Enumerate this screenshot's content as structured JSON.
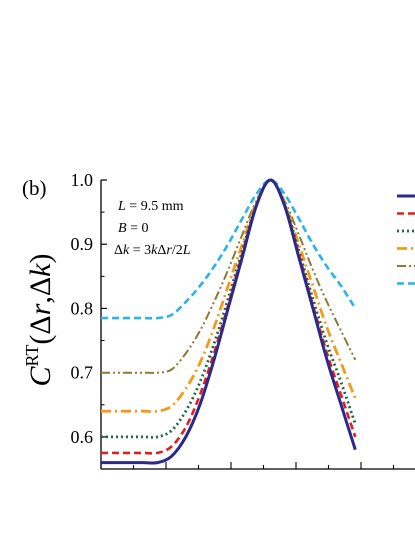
{
  "panel_label": "(b)",
  "annotations": {
    "line1_var": "L",
    "line1_rest": " = 9.5 mm",
    "line2_var": "B",
    "line2_rest": " = 0",
    "line3_a": "Δ",
    "line3_b": "k",
    "line3_c": " = 3",
    "line3_d": "k",
    "line3_e": "Δ",
    "line3_f": "r",
    "line3_g": "/2",
    "line3_h": "L"
  },
  "ylabel": {
    "C": "C",
    "sup": "RT",
    "open": "(Δ",
    "r": "r",
    "comma": ",Δ",
    "k": "k",
    "close": ")"
  },
  "chart_data": {
    "type": "line",
    "title": "",
    "xlabel": "",
    "ylabel": "C^RT(Δr,Δk)",
    "ylim": [
      0.55,
      1.0
    ],
    "yticks": [
      0.6,
      0.7,
      0.8,
      0.9,
      1.0
    ],
    "ytick_labels": [
      "0.6",
      "0.7",
      "0.8",
      "0.9",
      "1.0"
    ],
    "grid": false,
    "legend": "top-right (partially cropped)",
    "x": [
      -6,
      -5.5,
      -5,
      -4.5,
      -4,
      -3.5,
      -3,
      -2.5,
      -2,
      -1.5,
      -1,
      -0.5,
      0,
      0.5,
      1,
      1.5,
      2,
      2.5,
      3
    ],
    "series": [
      {
        "color": "#2a2a8c",
        "style": "solid",
        "values": [
          0.56,
          0.56,
          0.56,
          0.56,
          0.56,
          0.57,
          0.6,
          0.65,
          0.72,
          0.8,
          0.88,
          0.96,
          1.0,
          0.96,
          0.88,
          0.8,
          0.72,
          0.65,
          0.58
        ]
      },
      {
        "color": "#e01e1e",
        "style": "dash",
        "values": [
          0.575,
          0.575,
          0.575,
          0.575,
          0.575,
          0.585,
          0.615,
          0.665,
          0.73,
          0.805,
          0.885,
          0.96,
          1.0,
          0.96,
          0.885,
          0.805,
          0.73,
          0.665,
          0.6
        ]
      },
      {
        "color": "#1a6b3c",
        "style": "dot",
        "values": [
          0.6,
          0.6,
          0.6,
          0.6,
          0.6,
          0.61,
          0.64,
          0.685,
          0.745,
          0.815,
          0.89,
          0.962,
          1.0,
          0.962,
          0.89,
          0.815,
          0.745,
          0.685,
          0.62
        ]
      },
      {
        "color": "#f39a1b",
        "style": "dash-dot",
        "values": [
          0.64,
          0.64,
          0.64,
          0.64,
          0.64,
          0.648,
          0.675,
          0.715,
          0.77,
          0.835,
          0.9,
          0.965,
          1.0,
          0.965,
          0.9,
          0.835,
          0.77,
          0.715,
          0.66
        ]
      },
      {
        "color": "#8b7a35",
        "style": "dash-dot-dot",
        "values": [
          0.7,
          0.7,
          0.7,
          0.7,
          0.7,
          0.705,
          0.73,
          0.765,
          0.81,
          0.86,
          0.915,
          0.968,
          1.0,
          0.968,
          0.915,
          0.86,
          0.81,
          0.765,
          0.72
        ]
      },
      {
        "color": "#29b4e8",
        "style": "dash",
        "values": [
          0.785,
          0.785,
          0.785,
          0.785,
          0.785,
          0.79,
          0.81,
          0.835,
          0.865,
          0.9,
          0.94,
          0.978,
          1.0,
          0.978,
          0.94,
          0.9,
          0.865,
          0.835,
          0.8
        ]
      }
    ]
  }
}
